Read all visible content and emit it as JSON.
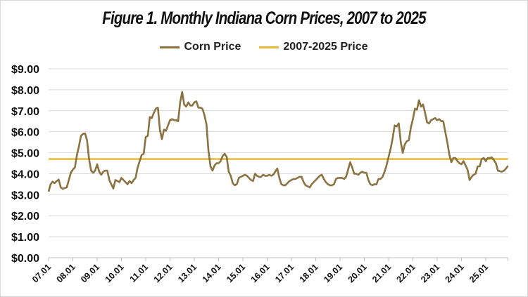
{
  "chart_data": {
    "type": "line",
    "title": "Figure 1.  Monthly Indiana Corn Prices, 2007 to 2025",
    "xlabel": "",
    "ylabel": "",
    "ylim": [
      0,
      9
    ],
    "yticks": [
      "$0.00",
      "$1.00",
      "$2.00",
      "$3.00",
      "$4.00",
      "$5.00",
      "$6.00",
      "$7.00",
      "$8.00",
      "$9.00"
    ],
    "xticks": [
      "07.01",
      "08.01",
      "09.01",
      "10.01",
      "11.01",
      "12.01",
      "13.01",
      "14.01",
      "15.01",
      "16.01",
      "17.01",
      "18.01",
      "19.01",
      "20.01",
      "21.01",
      "22.01",
      "23.01",
      "24.01",
      "25.01"
    ],
    "x_start": "2007-01",
    "x_end": "2025-12",
    "grid": true,
    "legend_position": "top",
    "series": [
      {
        "name": "Corn Price",
        "color": "#8b7240",
        "values": [
          3.15,
          3.5,
          3.62,
          3.55,
          3.65,
          3.72,
          3.35,
          3.28,
          3.32,
          3.35,
          3.7,
          4.05,
          4.2,
          4.3,
          4.9,
          5.3,
          5.8,
          5.9,
          5.92,
          5.6,
          4.7,
          4.15,
          4.05,
          4.15,
          4.45,
          4.1,
          3.95,
          4.1,
          4.15,
          4.15,
          3.7,
          3.5,
          3.3,
          3.7,
          3.65,
          3.6,
          3.8,
          3.7,
          3.6,
          3.5,
          3.65,
          3.55,
          3.7,
          3.8,
          4.3,
          4.6,
          4.9,
          4.95,
          5.75,
          5.8,
          6.7,
          6.65,
          6.9,
          7.1,
          7.15,
          6.1,
          5.65,
          6.1,
          6.05,
          6.3,
          6.55,
          6.6,
          6.55,
          6.55,
          6.5,
          7.4,
          7.9,
          7.3,
          7.2,
          7.4,
          7.25,
          7.25,
          7.4,
          7.45,
          7.15,
          7.15,
          7.1,
          6.8,
          6.35,
          5.1,
          4.35,
          4.15,
          4.4,
          4.5,
          4.5,
          4.6,
          4.85,
          4.95,
          4.8,
          4.1,
          3.9,
          3.55,
          3.45,
          3.5,
          3.8,
          3.85,
          3.9,
          3.95,
          3.9,
          3.8,
          3.7,
          3.65,
          4.0,
          3.9,
          3.85,
          3.85,
          3.95,
          3.9,
          3.9,
          3.95,
          3.9,
          3.95,
          4.1,
          4.25,
          3.8,
          3.5,
          3.45,
          3.45,
          3.55,
          3.65,
          3.7,
          3.75,
          3.75,
          3.8,
          3.85,
          3.85,
          3.6,
          3.45,
          3.4,
          3.35,
          3.5,
          3.6,
          3.7,
          3.8,
          3.9,
          3.95,
          3.75,
          3.6,
          3.5,
          3.45,
          3.45,
          3.5,
          3.75,
          3.8,
          3.8,
          3.8,
          3.75,
          3.85,
          4.2,
          4.55,
          4.3,
          4.0,
          4.0,
          3.95,
          4.05,
          4.1,
          4.05,
          4.05,
          3.7,
          3.5,
          3.45,
          3.5,
          3.5,
          3.75,
          3.75,
          3.85,
          4.1,
          4.4,
          4.8,
          5.2,
          5.7,
          6.3,
          6.25,
          6.4,
          5.5,
          5.0,
          5.4,
          5.55,
          5.6,
          6.2,
          6.6,
          7.1,
          7.05,
          7.5,
          7.2,
          7.3,
          6.9,
          6.45,
          6.4,
          6.55,
          6.6,
          6.65,
          6.55,
          6.6,
          6.5,
          6.5,
          6.0,
          5.5,
          4.9,
          4.55,
          4.75,
          4.75,
          4.6,
          4.5,
          4.45,
          4.6,
          4.4,
          4.2,
          3.7,
          3.85,
          3.95,
          4.0,
          4.35,
          4.35,
          4.7,
          4.75,
          4.6,
          4.75,
          4.75,
          4.78,
          4.65,
          4.5,
          4.15,
          4.12,
          4.1,
          4.15,
          4.25,
          4.38
        ]
      },
      {
        "name": "2007-2025 Price",
        "color": "#e8b93a",
        "constant": 4.7
      }
    ]
  }
}
